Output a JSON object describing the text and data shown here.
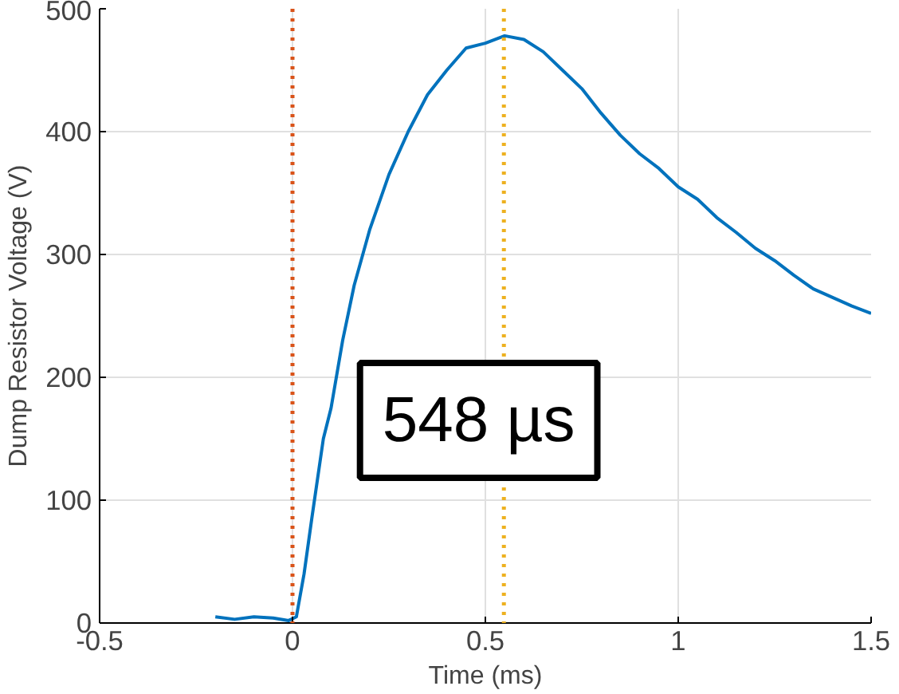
{
  "chart_data": {
    "type": "line",
    "xlabel": "Time (ms)",
    "ylabel": "Dump Resistor Voltage (V)",
    "x": [
      -0.2,
      -0.15,
      -0.1,
      -0.05,
      -0.01,
      0.01,
      0.03,
      0.05,
      0.08,
      0.1,
      0.13,
      0.16,
      0.2,
      0.25,
      0.3,
      0.35,
      0.4,
      0.45,
      0.5,
      0.55,
      0.6,
      0.65,
      0.7,
      0.75,
      0.8,
      0.85,
      0.9,
      0.95,
      1.0,
      1.05,
      1.1,
      1.15,
      1.2,
      1.25,
      1.3,
      1.35,
      1.4,
      1.45,
      1.5
    ],
    "series": [
      {
        "color": "#0072bd",
        "values": [
          5,
          3,
          5,
          4,
          2,
          5,
          40,
          85,
          150,
          175,
          230,
          275,
          320,
          365,
          400,
          430,
          450,
          468,
          472,
          478,
          475,
          465,
          450,
          435,
          415,
          397,
          382,
          370,
          355,
          345,
          330,
          318,
          305,
          295,
          283,
          272,
          265,
          258,
          252
        ]
      }
    ],
    "xlim": [
      -0.5,
      1.5
    ],
    "ylim": [
      0,
      500
    ],
    "xticks": [
      -0.5,
      0,
      0.5,
      1,
      1.5
    ],
    "yticks": [
      0,
      100,
      200,
      300,
      400,
      500
    ],
    "ref_lines": [
      {
        "axis": "x",
        "value": 0,
        "color": "#d95319",
        "line_style": "dotted"
      },
      {
        "axis": "x",
        "value": 0.548,
        "color": "#edb120",
        "line_style": "dotted"
      }
    ],
    "annotations": [
      "548 µs"
    ],
    "grid": true,
    "line_style": "solid"
  }
}
